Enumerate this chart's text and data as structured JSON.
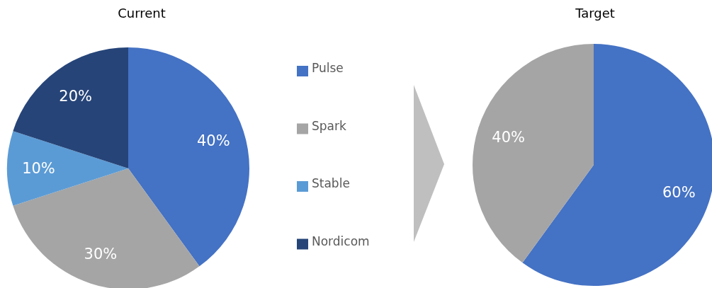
{
  "chart_data": [
    {
      "type": "pie",
      "title": "Current",
      "categories": [
        "Pulse",
        "Spark",
        "Stable",
        "Nordicom"
      ],
      "values": [
        40,
        30,
        10,
        20
      ],
      "colors": [
        "#4472c4",
        "#a5a5a5",
        "#5b9bd5",
        "#264478"
      ],
      "value_labels": [
        "40%",
        "30%",
        "10%",
        "20%"
      ],
      "legend": "right"
    },
    {
      "type": "pie",
      "title": "Target",
      "categories": [
        null,
        null
      ],
      "values": [
        60,
        40
      ],
      "colors": [
        "#4472c4",
        "#a5a5a5"
      ],
      "value_labels": [
        "60%",
        "40%"
      ]
    }
  ]
}
